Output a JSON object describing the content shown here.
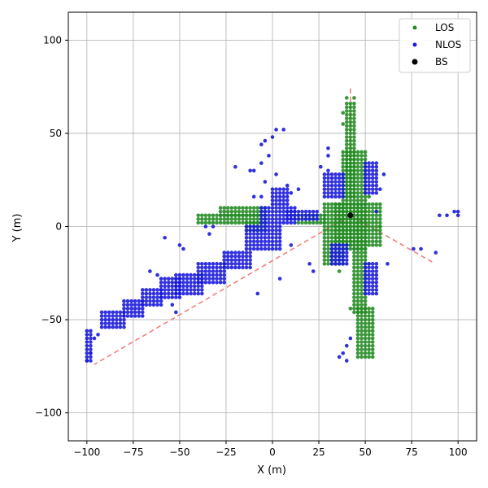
{
  "chart_data": {
    "type": "scatter",
    "xlabel": "X (m)",
    "ylabel": "Y (m)",
    "xlim": [
      -110,
      110
    ],
    "ylim": [
      -115,
      115
    ],
    "xticks": [
      -100,
      -75,
      -50,
      -25,
      0,
      25,
      50,
      75,
      100
    ],
    "yticks": [
      -100,
      -50,
      0,
      50,
      100
    ],
    "grid": true,
    "legend_position": "top-right",
    "colors": {
      "los": "#228b22",
      "nlos": "#1a1adc",
      "bs": "#000000",
      "ray": "#f08080"
    },
    "base_station": {
      "name": "BS",
      "x": 42,
      "y": 6
    },
    "rays": [
      {
        "x1": 42,
        "y1": 6,
        "x2": -96,
        "y2": -74
      },
      {
        "x1": 42,
        "y1": 6,
        "x2": 86,
        "y2": -19
      },
      {
        "x1": 42,
        "y1": 6,
        "x2": 42,
        "y2": 75
      }
    ],
    "series": [
      {
        "name": "LOS",
        "rects": [
          [
            40,
            44,
            16,
            66,
            2
          ],
          [
            38,
            50,
            -12,
            40,
            2
          ],
          [
            44,
            50,
            -46,
            -12,
            2
          ],
          [
            46,
            54,
            -70,
            -44,
            2
          ],
          [
            34,
            58,
            -10,
            12,
            2
          ],
          [
            28,
            38,
            -20,
            12,
            2
          ],
          [
            -40,
            -4,
            2,
            6,
            2
          ],
          [
            -28,
            -4,
            6,
            10,
            2
          ],
          [
            -14,
            -4,
            -2,
            2,
            2
          ],
          [
            14,
            28,
            2,
            6,
            2
          ]
        ],
        "points": [
          [
            40,
            69
          ],
          [
            44,
            69
          ],
          [
            38,
            61
          ],
          [
            38,
            55
          ],
          [
            36,
            -24
          ],
          [
            34,
            -20
          ],
          [
            52,
            -20
          ],
          [
            52,
            16
          ],
          [
            58,
            0
          ],
          [
            42,
            -44
          ]
        ]
      },
      {
        "name": "NLOS",
        "rects": [
          [
            -6,
            12,
            2,
            10,
            2
          ],
          [
            -14,
            4,
            -12,
            0,
            2
          ],
          [
            -26,
            -12,
            -22,
            -14,
            2
          ],
          [
            -40,
            -26,
            -30,
            -20,
            2
          ],
          [
            -52,
            -38,
            -36,
            -26,
            2
          ],
          [
            -60,
            -50,
            -38,
            -28,
            2
          ],
          [
            -70,
            -60,
            -42,
            -34,
            2
          ],
          [
            -80,
            -70,
            -48,
            -40,
            2
          ],
          [
            -92,
            -80,
            -54,
            -46,
            2
          ],
          [
            -100,
            -98,
            -72,
            -56,
            2
          ],
          [
            0,
            8,
            12,
            20,
            2
          ],
          [
            28,
            38,
            16,
            28,
            2
          ],
          [
            50,
            56,
            18,
            34,
            2
          ],
          [
            50,
            56,
            -36,
            -20,
            2
          ],
          [
            8,
            24,
            4,
            8,
            2
          ],
          [
            32,
            40,
            -20,
            -10,
            2
          ]
        ],
        "points": [
          [
            -20,
            32
          ],
          [
            -10,
            30
          ],
          [
            -6,
            44
          ],
          [
            0,
            48
          ],
          [
            2,
            52
          ],
          [
            6,
            52
          ],
          [
            -4,
            46
          ],
          [
            -2,
            38
          ],
          [
            -6,
            34
          ],
          [
            -10,
            16
          ],
          [
            -6,
            16
          ],
          [
            -4,
            24
          ],
          [
            -12,
            30
          ],
          [
            2,
            28
          ],
          [
            14,
            20
          ],
          [
            10,
            18
          ],
          [
            8,
            22
          ],
          [
            -32,
            0
          ],
          [
            -36,
            0
          ],
          [
            -34,
            -4
          ],
          [
            -58,
            -6
          ],
          [
            -50,
            -10
          ],
          [
            -48,
            -12
          ],
          [
            -66,
            -24
          ],
          [
            -62,
            -26
          ],
          [
            -54,
            -42
          ],
          [
            -52,
            -46
          ],
          [
            -8,
            -36
          ],
          [
            4,
            -28
          ],
          [
            10,
            -10
          ],
          [
            20,
            -20
          ],
          [
            22,
            -24
          ],
          [
            30,
            42
          ],
          [
            30,
            38
          ],
          [
            26,
            32
          ],
          [
            30,
            30
          ],
          [
            58,
            20
          ],
          [
            60,
            28
          ],
          [
            62,
            -20
          ],
          [
            56,
            8
          ],
          [
            76,
            -12
          ],
          [
            80,
            -12
          ],
          [
            88,
            -14
          ],
          [
            90,
            6
          ],
          [
            94,
            6
          ],
          [
            98,
            8
          ],
          [
            100,
            8
          ],
          [
            100,
            6
          ],
          [
            38,
            -68
          ],
          [
            40,
            -64
          ],
          [
            42,
            -60
          ],
          [
            40,
            -72
          ],
          [
            36,
            -70
          ],
          [
            -100,
            -72
          ],
          [
            -98,
            -68
          ],
          [
            -96,
            -60
          ],
          [
            -94,
            -58
          ]
        ]
      },
      {
        "name": "BS",
        "points": [
          [
            42,
            6
          ]
        ]
      }
    ]
  }
}
